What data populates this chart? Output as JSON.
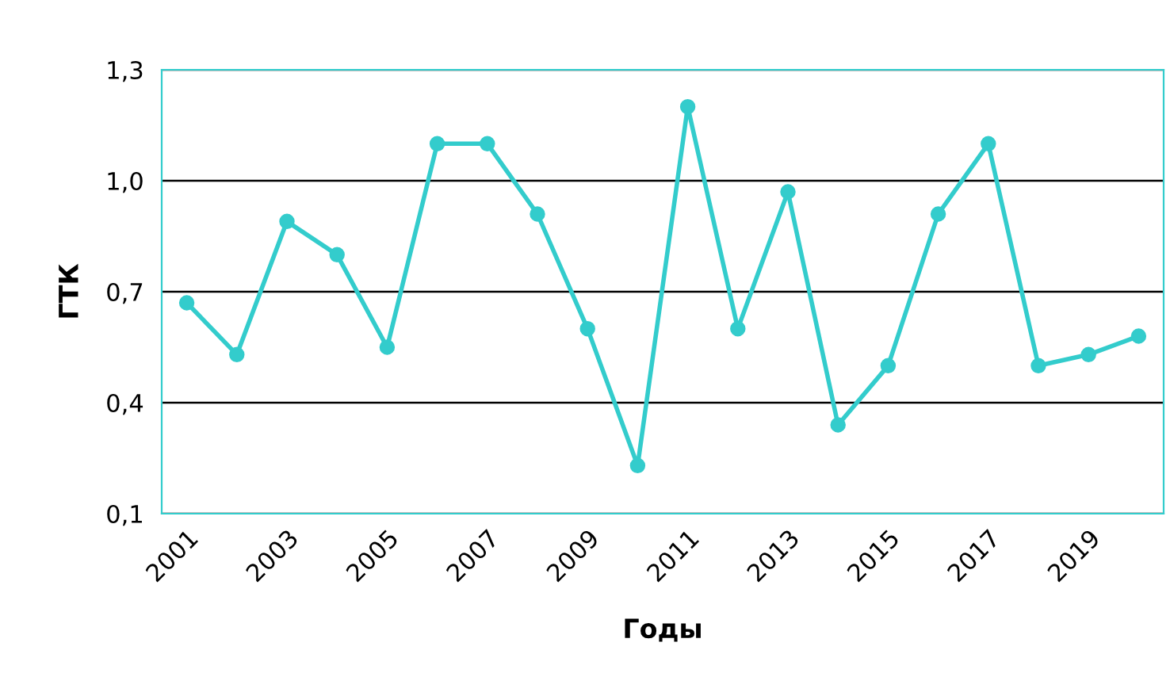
{
  "chart_data": {
    "type": "line",
    "xlabel": "Годы",
    "ylabel": "ГТК",
    "categories": [
      "2001",
      null,
      "2003",
      null,
      "2005",
      null,
      "2007",
      null,
      "2009",
      null,
      "2011",
      null,
      "2013",
      null,
      "2015",
      null,
      "2017",
      null,
      "2019",
      null
    ],
    "series": [
      {
        "color": "#33cccc",
        "values": [
          0.67,
          0.53,
          0.89,
          0.8,
          0.55,
          1.1,
          1.1,
          0.91,
          0.6,
          0.23,
          1.2,
          0.6,
          0.97,
          0.34,
          0.5,
          0.91,
          1.1,
          0.5,
          0.53,
          0.58
        ]
      }
    ],
    "ylim": [
      0.1,
      1.3
    ],
    "yticks": [
      {
        "value": 0.1,
        "label": "0,1"
      },
      {
        "value": 0.4,
        "label": "0,4"
      },
      {
        "value": 0.7,
        "label": "0,7"
      },
      {
        "value": 1.0,
        "label": "1,0"
      },
      {
        "value": 1.3,
        "label": "1,3"
      }
    ],
    "grid": "y",
    "marker": "circle",
    "line_style": "solid",
    "legend": false
  }
}
